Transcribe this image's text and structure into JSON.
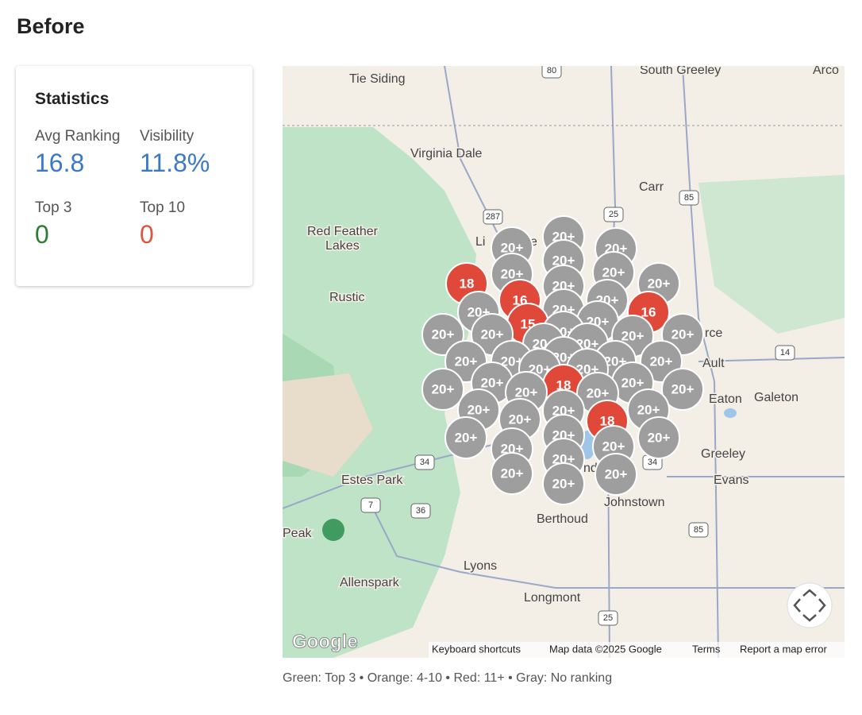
{
  "header": {
    "title": "Before"
  },
  "stats": {
    "title": "Statistics",
    "items": [
      {
        "label": "Avg Ranking",
        "value": "16.8",
        "color": "#3b78c9"
      },
      {
        "label": "Visibility",
        "value": "11.8%",
        "color": "#3b78c9"
      },
      {
        "label": "Top 3",
        "value": "0",
        "color": "#2e7d32"
      },
      {
        "label": "Top 10",
        "value": "0",
        "color": "#e0533d"
      }
    ]
  },
  "map": {
    "places": [
      "Tie Siding",
      "South Greeley",
      "Arco",
      "Virginia Dale",
      "Carr",
      "Red Feather",
      "Lakes",
      "Rustic",
      "Li",
      "e",
      "rce",
      "Ault",
      "Eaton",
      "Galeton",
      "Greeley",
      "Evans",
      "Estes Park",
      "Johnstown",
      "Berthoud",
      "Peak",
      "Lyons",
      "Allenspark",
      "Longmont",
      "nd"
    ],
    "shields": [
      "80",
      "287",
      "25",
      "85",
      "14",
      "34",
      "36",
      "7",
      "34",
      "85",
      "25"
    ],
    "markers": [
      {
        "label": "20+",
        "color": "#9e9e9e"
      },
      {
        "label": "20+",
        "color": "#9e9e9e"
      },
      {
        "label": "20+",
        "color": "#9e9e9e"
      },
      {
        "label": "20+",
        "color": "#9e9e9e"
      },
      {
        "label": "20+",
        "color": "#9e9e9e"
      },
      {
        "label": "20+",
        "color": "#9e9e9e"
      },
      {
        "label": "18",
        "color": "#e0493a"
      },
      {
        "label": "20+",
        "color": "#9e9e9e"
      },
      {
        "label": "20+",
        "color": "#9e9e9e"
      },
      {
        "label": "16",
        "color": "#e0493a"
      },
      {
        "label": "20+",
        "color": "#9e9e9e"
      },
      {
        "label": "20+",
        "color": "#9e9e9e"
      },
      {
        "label": "20+",
        "color": "#9e9e9e"
      },
      {
        "label": "16",
        "color": "#e0493a"
      },
      {
        "label": "15",
        "color": "#e0493a"
      },
      {
        "label": "20+",
        "color": "#9e9e9e"
      },
      {
        "label": "20+",
        "color": "#9e9e9e"
      },
      {
        "label": "20+",
        "color": "#9e9e9e"
      },
      {
        "label": "20+",
        "color": "#9e9e9e"
      },
      {
        "label": "20+",
        "color": "#9e9e9e"
      },
      {
        "label": "20+",
        "color": "#9e9e9e"
      },
      {
        "label": "20+",
        "color": "#9e9e9e"
      },
      {
        "label": "20+",
        "color": "#9e9e9e"
      },
      {
        "label": "20+",
        "color": "#9e9e9e"
      },
      {
        "label": "20+",
        "color": "#9e9e9e"
      },
      {
        "label": "20+",
        "color": "#9e9e9e"
      },
      {
        "label": "20+",
        "color": "#9e9e9e"
      },
      {
        "label": "20+",
        "color": "#9e9e9e"
      },
      {
        "label": "20+",
        "color": "#9e9e9e"
      },
      {
        "label": "20+",
        "color": "#9e9e9e"
      },
      {
        "label": "20+",
        "color": "#9e9e9e"
      },
      {
        "label": "18",
        "color": "#e0493a"
      },
      {
        "label": "20+",
        "color": "#9e9e9e"
      },
      {
        "label": "20+",
        "color": "#9e9e9e"
      },
      {
        "label": "20+",
        "color": "#9e9e9e"
      },
      {
        "label": "20+",
        "color": "#9e9e9e"
      },
      {
        "label": "20+",
        "color": "#9e9e9e"
      },
      {
        "label": "20+",
        "color": "#9e9e9e"
      },
      {
        "label": "20+",
        "color": "#9e9e9e"
      },
      {
        "label": "20+",
        "color": "#9e9e9e"
      },
      {
        "label": "20+",
        "color": "#9e9e9e"
      },
      {
        "label": "18",
        "color": "#e0493a"
      },
      {
        "label": "20+",
        "color": "#9e9e9e"
      },
      {
        "label": "20+",
        "color": "#9e9e9e"
      },
      {
        "label": "20+",
        "color": "#9e9e9e"
      },
      {
        "label": "20+",
        "color": "#9e9e9e"
      },
      {
        "label": "20+",
        "color": "#9e9e9e"
      },
      {
        "label": "20+",
        "color": "#9e9e9e"
      },
      {
        "label": "20+",
        "color": "#9e9e9e"
      },
      {
        "label": "20+",
        "color": "#9e9e9e"
      },
      {
        "label": "20+",
        "color": "#9e9e9e"
      }
    ],
    "logo": "Google",
    "footer": [
      "Keyboard shortcuts",
      "Map data ©2025 Google",
      "Terms",
      "Report a map error"
    ]
  },
  "legend": "Green: Top 3 • Orange: 4-10 • Red: 11+ • Gray: No ranking"
}
